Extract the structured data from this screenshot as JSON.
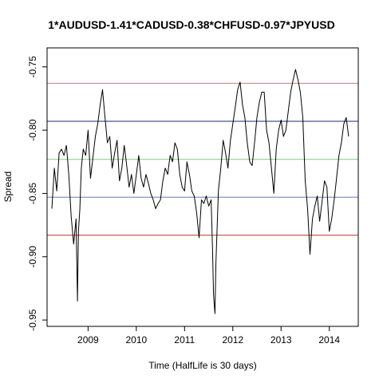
{
  "chart_data": {
    "type": "line",
    "title": "1*AUDUSD-1.41*CADUSD-0.38*CHFUSD-0.97*JPYUSD",
    "xlabel": "Time  (HalfLife is 30 days)",
    "ylabel": "Spread",
    "xlim": [
      2008.15,
      2014.6
    ],
    "ylim": [
      -0.955,
      -0.735
    ],
    "x_ticks": [
      {
        "value": 2009,
        "label": "2009"
      },
      {
        "value": 2010,
        "label": "2010"
      },
      {
        "value": 2011,
        "label": "2011"
      },
      {
        "value": 2012,
        "label": "2012"
      },
      {
        "value": 2013,
        "label": "2013"
      },
      {
        "value": 2014,
        "label": "2014"
      }
    ],
    "y_ticks": [
      {
        "value": -0.95,
        "label": "-0.95"
      },
      {
        "value": -0.9,
        "label": "-0.90"
      },
      {
        "value": -0.85,
        "label": "-0.85"
      },
      {
        "value": -0.8,
        "label": "-0.80"
      },
      {
        "value": -0.75,
        "label": "-0.75"
      }
    ],
    "hlines": [
      {
        "y": -0.763,
        "color": "#f08080"
      },
      {
        "y": -0.793,
        "color": "#4a4ab0"
      },
      {
        "y": -0.823,
        "color": "#90e090"
      },
      {
        "y": -0.853,
        "color": "#7a7aee"
      },
      {
        "y": -0.883,
        "color": "#e05050"
      }
    ],
    "series": [
      {
        "color": "#000000",
        "x": [
          2008.25,
          2008.3,
          2008.35,
          2008.4,
          2008.45,
          2008.5,
          2008.55,
          2008.6,
          2008.65,
          2008.7,
          2008.75,
          2008.78,
          2008.8,
          2008.83,
          2008.86,
          2008.9,
          2008.95,
          2009.0,
          2009.05,
          2009.1,
          2009.15,
          2009.2,
          2009.25,
          2009.3,
          2009.35,
          2009.4,
          2009.45,
          2009.5,
          2009.55,
          2009.6,
          2009.65,
          2009.7,
          2009.75,
          2009.8,
          2009.85,
          2009.9,
          2009.95,
          2010.0,
          2010.05,
          2010.1,
          2010.15,
          2010.2,
          2010.25,
          2010.3,
          2010.35,
          2010.4,
          2010.45,
          2010.5,
          2010.55,
          2010.6,
          2010.65,
          2010.7,
          2010.75,
          2010.8,
          2010.85,
          2010.9,
          2010.95,
          2011.0,
          2011.05,
          2011.1,
          2011.15,
          2011.2,
          2011.25,
          2011.3,
          2011.35,
          2011.4,
          2011.45,
          2011.5,
          2011.55,
          2011.58,
          2011.6,
          2011.63,
          2011.65,
          2011.7,
          2011.75,
          2011.8,
          2011.85,
          2011.9,
          2011.95,
          2012.0,
          2012.05,
          2012.1,
          2012.15,
          2012.2,
          2012.25,
          2012.3,
          2012.35,
          2012.4,
          2012.45,
          2012.5,
          2012.55,
          2012.6,
          2012.65,
          2012.7,
          2012.75,
          2012.8,
          2012.85,
          2012.9,
          2012.95,
          2013.0,
          2013.05,
          2013.1,
          2013.15,
          2013.2,
          2013.25,
          2013.3,
          2013.35,
          2013.4,
          2013.45,
          2013.5,
          2013.55,
          2013.6,
          2013.65,
          2013.7,
          2013.75,
          2013.8,
          2013.85,
          2013.9,
          2013.95,
          2014.0,
          2014.05,
          2014.1,
          2014.15,
          2014.2,
          2014.25,
          2014.3,
          2014.35,
          2014.4
        ],
        "y": [
          -0.862,
          -0.83,
          -0.848,
          -0.818,
          -0.815,
          -0.82,
          -0.812,
          -0.835,
          -0.868,
          -0.89,
          -0.87,
          -0.935,
          -0.88,
          -0.862,
          -0.83,
          -0.815,
          -0.82,
          -0.8,
          -0.838,
          -0.822,
          -0.805,
          -0.795,
          -0.78,
          -0.768,
          -0.79,
          -0.81,
          -0.805,
          -0.83,
          -0.818,
          -0.808,
          -0.84,
          -0.83,
          -0.812,
          -0.828,
          -0.845,
          -0.835,
          -0.85,
          -0.835,
          -0.82,
          -0.838,
          -0.845,
          -0.835,
          -0.842,
          -0.85,
          -0.855,
          -0.862,
          -0.858,
          -0.855,
          -0.84,
          -0.83,
          -0.835,
          -0.82,
          -0.825,
          -0.81,
          -0.815,
          -0.835,
          -0.845,
          -0.848,
          -0.825,
          -0.835,
          -0.848,
          -0.852,
          -0.865,
          -0.885,
          -0.855,
          -0.858,
          -0.852,
          -0.86,
          -0.855,
          -0.895,
          -0.93,
          -0.945,
          -0.905,
          -0.848,
          -0.83,
          -0.808,
          -0.818,
          -0.83,
          -0.808,
          -0.795,
          -0.782,
          -0.768,
          -0.762,
          -0.78,
          -0.79,
          -0.81,
          -0.825,
          -0.828,
          -0.81,
          -0.79,
          -0.778,
          -0.77,
          -0.77,
          -0.8,
          -0.81,
          -0.83,
          -0.85,
          -0.815,
          -0.8,
          -0.792,
          -0.805,
          -0.8,
          -0.785,
          -0.77,
          -0.76,
          -0.752,
          -0.76,
          -0.77,
          -0.79,
          -0.84,
          -0.862,
          -0.898,
          -0.87,
          -0.86,
          -0.852,
          -0.872,
          -0.856,
          -0.84,
          -0.845,
          -0.88,
          -0.87,
          -0.855,
          -0.838,
          -0.82,
          -0.81,
          -0.795,
          -0.79,
          -0.805
        ]
      }
    ]
  }
}
